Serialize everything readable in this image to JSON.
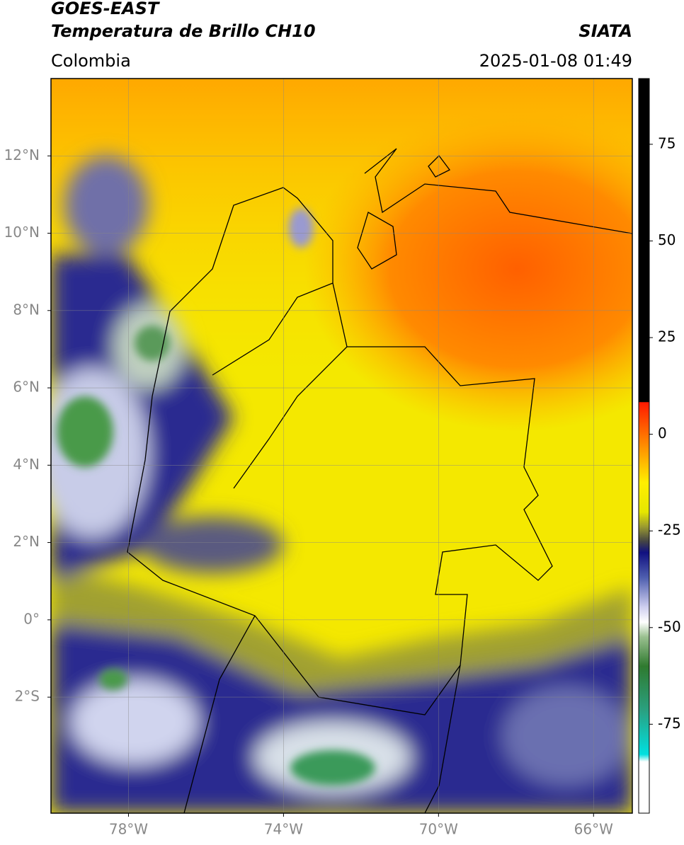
{
  "header": {
    "title_line1": "GOES-EAST",
    "title_line2": "Temperatura de Brillo CH10",
    "source": "SIATA",
    "region": "Colombia",
    "datetime": "2025-01-08 01:49"
  },
  "map": {
    "xlim": [
      -80,
      -65
    ],
    "ylim": [
      -5,
      14
    ],
    "grid": true,
    "xticks": [
      {
        "value": -78,
        "label": "78°W"
      },
      {
        "value": -74,
        "label": "74°W"
      },
      {
        "value": -70,
        "label": "70°W"
      },
      {
        "value": -66,
        "label": "66°W"
      }
    ],
    "yticks": [
      {
        "value": 12,
        "label": "12°N"
      },
      {
        "value": 10,
        "label": "10°N"
      },
      {
        "value": 8,
        "label": "8°N"
      },
      {
        "value": 6,
        "label": "6°N"
      },
      {
        "value": 4,
        "label": "4°N"
      },
      {
        "value": 2,
        "label": "2°N"
      },
      {
        "value": 0,
        "label": "0°"
      },
      {
        "value": -2,
        "label": "2°S"
      }
    ]
  },
  "colorbar": {
    "lim": [
      -98,
      92
    ],
    "ticks": [
      75,
      50,
      25,
      0,
      -25,
      -50,
      -75
    ]
  }
}
